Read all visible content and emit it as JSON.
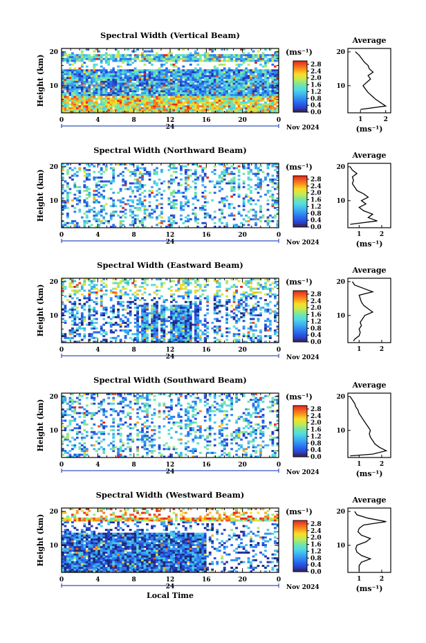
{
  "chart_data": [
    {
      "type": "heatmap",
      "title": "Spectral Width (Vertical Beam)",
      "ylabel": "Height (km)",
      "yticks": [
        "10",
        "20"
      ],
      "ylim": [
        2,
        21
      ],
      "xticks": [
        "0",
        "4",
        "8",
        "12",
        "16",
        "20",
        "0"
      ],
      "xlim": [
        0,
        24
      ],
      "day_label": "24",
      "date_label": "Nov 2024",
      "colorbar": {
        "unit": "(ms⁻¹)",
        "ticks": [
          "0.0",
          "0.4",
          "0.8",
          "1.2",
          "1.6",
          "2.0",
          "2.4",
          "2.8"
        ],
        "range": [
          0,
          3.0
        ]
      },
      "average": {
        "title": "Average",
        "xlabel": "(ms⁻¹)",
        "xticks": [
          "1",
          "2"
        ],
        "xlim": [
          0.5,
          2.2
        ],
        "ylim": [
          2,
          21
        ],
        "yticks": [
          "10",
          "20"
        ],
        "profile": [
          {
            "h": 3,
            "v": 1.0
          },
          {
            "h": 4,
            "v": 2.0
          },
          {
            "h": 5,
            "v": 1.8
          },
          {
            "h": 6,
            "v": 1.6
          },
          {
            "h": 7,
            "v": 1.45
          },
          {
            "h": 8,
            "v": 1.3
          },
          {
            "h": 9,
            "v": 1.2
          },
          {
            "h": 10,
            "v": 1.1
          },
          {
            "h": 11,
            "v": 1.25
          },
          {
            "h": 12,
            "v": 1.4
          },
          {
            "h": 13,
            "v": 1.3
          },
          {
            "h": 14,
            "v": 1.5
          },
          {
            "h": 15,
            "v": 1.35
          },
          {
            "h": 16,
            "v": 1.3
          },
          {
            "h": 17,
            "v": 1.15
          },
          {
            "h": 18,
            "v": 1.05
          },
          {
            "h": 19,
            "v": 0.95
          },
          {
            "h": 20,
            "v": 0.8
          }
        ]
      }
    },
    {
      "type": "heatmap",
      "title": "Spectral Width (Northward Beam)",
      "ylabel": "Height (km)",
      "yticks": [
        "10",
        "20"
      ],
      "ylim": [
        2,
        21
      ],
      "xticks": [
        "0",
        "4",
        "8",
        "12",
        "16",
        "20",
        "0"
      ],
      "xlim": [
        0,
        24
      ],
      "day_label": "24",
      "date_label": "Nov 2024",
      "colorbar": {
        "unit": "(ms⁻¹)",
        "ticks": [
          "0.0",
          "0.4",
          "0.8",
          "1.2",
          "1.6",
          "2.0",
          "2.4",
          "2.8"
        ],
        "range": [
          0,
          3.0
        ]
      },
      "average": {
        "title": "Average",
        "xlabel": "(ms⁻¹)",
        "xticks": [
          "1",
          "2"
        ],
        "xlim": [
          0.5,
          2.4
        ],
        "ylim": [
          2,
          21
        ],
        "yticks": [
          "10",
          "20"
        ],
        "profile": [
          {
            "h": 3,
            "v": 0.6
          },
          {
            "h": 4,
            "v": 1.8
          },
          {
            "h": 5,
            "v": 1.4
          },
          {
            "h": 6,
            "v": 1.6
          },
          {
            "h": 7,
            "v": 1.2
          },
          {
            "h": 8,
            "v": 1.0
          },
          {
            "h": 9,
            "v": 1.3
          },
          {
            "h": 10,
            "v": 1.1
          },
          {
            "h": 11,
            "v": 1.4
          },
          {
            "h": 12,
            "v": 1.2
          },
          {
            "h": 13,
            "v": 0.9
          },
          {
            "h": 14,
            "v": 0.8
          },
          {
            "h": 15,
            "v": 0.7
          },
          {
            "h": 16,
            "v": 0.75
          },
          {
            "h": 17,
            "v": 0.7
          },
          {
            "h": 18,
            "v": 0.9
          },
          {
            "h": 19,
            "v": 0.7
          },
          {
            "h": 20,
            "v": 0.6
          }
        ]
      }
    },
    {
      "type": "heatmap",
      "title": "Spectral Width (Eastward Beam)",
      "ylabel": "Height (km)",
      "yticks": [
        "10",
        "20"
      ],
      "ylim": [
        2,
        21
      ],
      "xticks": [
        "0",
        "4",
        "8",
        "12",
        "16",
        "20",
        "0"
      ],
      "xlim": [
        0,
        24
      ],
      "day_label": "24",
      "date_label": "Nov 2024",
      "colorbar": {
        "unit": "(ms⁻¹)",
        "ticks": [
          "0.0",
          "0.4",
          "0.8",
          "1.2",
          "1.6",
          "2.0",
          "2.4",
          "2.8"
        ],
        "range": [
          0,
          3.0
        ]
      },
      "average": {
        "title": "Average",
        "xlabel": "",
        "xticks": [
          "1",
          "2"
        ],
        "xlim": [
          0.5,
          2.4
        ],
        "ylim": [
          2,
          21
        ],
        "yticks": [
          "10",
          "20"
        ],
        "profile": [
          {
            "h": 2.5,
            "v": 0.75
          },
          {
            "h": 3,
            "v": 0.8
          },
          {
            "h": 4,
            "v": 1.0
          },
          {
            "h": 5,
            "v": 1.05
          },
          {
            "h": 6,
            "v": 1.0
          },
          {
            "h": 7,
            "v": 1.1
          },
          {
            "h": 8,
            "v": 1.05
          },
          {
            "h": 9,
            "v": 1.15
          },
          {
            "h": 10,
            "v": 1.25
          },
          {
            "h": 11,
            "v": 1.6
          },
          {
            "h": 12,
            "v": 1.4
          },
          {
            "h": 13,
            "v": 1.2
          },
          {
            "h": 14,
            "v": 1.1
          },
          {
            "h": 15,
            "v": 1.05
          },
          {
            "h": 16,
            "v": 1.0
          },
          {
            "h": 17,
            "v": 1.6
          },
          {
            "h": 18,
            "v": 1.2
          },
          {
            "h": 19,
            "v": 0.8
          },
          {
            "h": 20,
            "v": 0.7
          }
        ]
      }
    },
    {
      "type": "heatmap",
      "title": "Spectral Width (Southward Beam)",
      "ylabel": "Height (km)",
      "yticks": [
        "10",
        "20"
      ],
      "ylim": [
        2,
        21
      ],
      "xticks": [
        "0",
        "4",
        "8",
        "12",
        "16",
        "20",
        "0"
      ],
      "xlim": [
        0,
        24
      ],
      "day_label": "24",
      "date_label": "Nov 2024",
      "colorbar": {
        "unit": "(ms⁻¹)",
        "ticks": [
          "0.0",
          "0.4",
          "0.8",
          "1.2",
          "1.6",
          "2.0",
          "2.4",
          "2.8"
        ],
        "range": [
          0,
          3.0
        ]
      },
      "average": {
        "title": "Average",
        "xlabel": "(ms⁻¹)",
        "xticks": [
          "1",
          "2"
        ],
        "xlim": [
          0.5,
          2.4
        ],
        "ylim": [
          2,
          21
        ],
        "yticks": [
          "10",
          "20"
        ],
        "profile": [
          {
            "h": 2.5,
            "v": 0.6
          },
          {
            "h": 3,
            "v": 1.6
          },
          {
            "h": 4,
            "v": 2.2
          },
          {
            "h": 5,
            "v": 1.9
          },
          {
            "h": 6,
            "v": 1.7
          },
          {
            "h": 7,
            "v": 1.6
          },
          {
            "h": 8,
            "v": 1.5
          },
          {
            "h": 9,
            "v": 1.45
          },
          {
            "h": 10,
            "v": 1.5
          },
          {
            "h": 11,
            "v": 1.4
          },
          {
            "h": 12,
            "v": 1.3
          },
          {
            "h": 13,
            "v": 1.2
          },
          {
            "h": 14,
            "v": 1.1
          },
          {
            "h": 15,
            "v": 1.0
          },
          {
            "h": 16,
            "v": 0.95
          },
          {
            "h": 17,
            "v": 0.85
          },
          {
            "h": 18,
            "v": 0.8
          },
          {
            "h": 19,
            "v": 0.7
          },
          {
            "h": 20,
            "v": 0.6
          }
        ]
      }
    },
    {
      "type": "heatmap",
      "title": "Spectral Width (Westward Beam)",
      "ylabel": "Height (km)",
      "yticks": [
        "10",
        "20"
      ],
      "ylim": [
        2,
        21
      ],
      "xticks": [
        "0",
        "4",
        "8",
        "12",
        "16",
        "20",
        "0"
      ],
      "xlim": [
        0,
        24
      ],
      "xlabel": "Local Time",
      "day_label": "24",
      "date_label": "Nov 2024",
      "colorbar": {
        "unit": "(ms⁻¹)",
        "ticks": [
          "0.0",
          "0.4",
          "0.8",
          "1.2",
          "1.6",
          "2.0",
          "2.4",
          "2.8"
        ],
        "range": [
          0,
          3.0
        ]
      },
      "average": {
        "title": "Average",
        "xlabel": "(ms⁻¹)",
        "xticks": [
          "1",
          "2"
        ],
        "xlim": [
          0.5,
          2.4
        ],
        "ylim": [
          2,
          21
        ],
        "yticks": [
          "10",
          "20"
        ],
        "profile": [
          {
            "h": 2.5,
            "v": 1.0
          },
          {
            "h": 3,
            "v": 1.0
          },
          {
            "h": 4,
            "v": 1.0
          },
          {
            "h": 5,
            "v": 1.1
          },
          {
            "h": 6,
            "v": 1.5
          },
          {
            "h": 7,
            "v": 1.1
          },
          {
            "h": 8,
            "v": 0.9
          },
          {
            "h": 9,
            "v": 0.85
          },
          {
            "h": 10,
            "v": 0.9
          },
          {
            "h": 11,
            "v": 1.3
          },
          {
            "h": 12,
            "v": 1.5
          },
          {
            "h": 13,
            "v": 1.1
          },
          {
            "h": 14,
            "v": 0.95
          },
          {
            "h": 15,
            "v": 1.0
          },
          {
            "h": 16,
            "v": 1.2
          },
          {
            "h": 17,
            "v": 2.2
          },
          {
            "h": 18,
            "v": 1.4
          },
          {
            "h": 19,
            "v": 0.9
          },
          {
            "h": 20,
            "v": 0.8
          }
        ]
      }
    }
  ]
}
